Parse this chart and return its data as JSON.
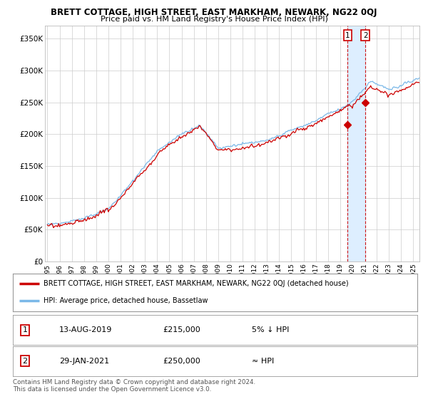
{
  "title": "BRETT COTTAGE, HIGH STREET, EAST MARKHAM, NEWARK, NG22 0QJ",
  "subtitle": "Price paid vs. HM Land Registry's House Price Index (HPI)",
  "ylabel_ticks": [
    "£0",
    "£50K",
    "£100K",
    "£150K",
    "£200K",
    "£250K",
    "£300K",
    "£350K"
  ],
  "ytick_values": [
    0,
    50000,
    100000,
    150000,
    200000,
    250000,
    300000,
    350000
  ],
  "ylim": [
    0,
    370000
  ],
  "xlim_start": 1994.8,
  "xlim_end": 2025.5,
  "hpi_color": "#7ab8e8",
  "price_color": "#cc0000",
  "sale1_x": 2019.62,
  "sale1_y": 215000,
  "sale2_x": 2021.08,
  "sale2_y": 250000,
  "shade_color": "#ddeeff",
  "legend_line1": "BRETT COTTAGE, HIGH STREET, EAST MARKHAM, NEWARK, NG22 0QJ (detached house)",
  "legend_line2": "HPI: Average price, detached house, Bassetlaw",
  "table_row1": [
    "1",
    "13-AUG-2019",
    "£215,000",
    "5% ↓ HPI"
  ],
  "table_row2": [
    "2",
    "29-JAN-2021",
    "£250,000",
    "≈ HPI"
  ],
  "footer": "Contains HM Land Registry data © Crown copyright and database right 2024.\nThis data is licensed under the Open Government Licence v3.0.",
  "bg_color": "#ffffff",
  "grid_color": "#cccccc",
  "plot_bg": "#ffffff"
}
